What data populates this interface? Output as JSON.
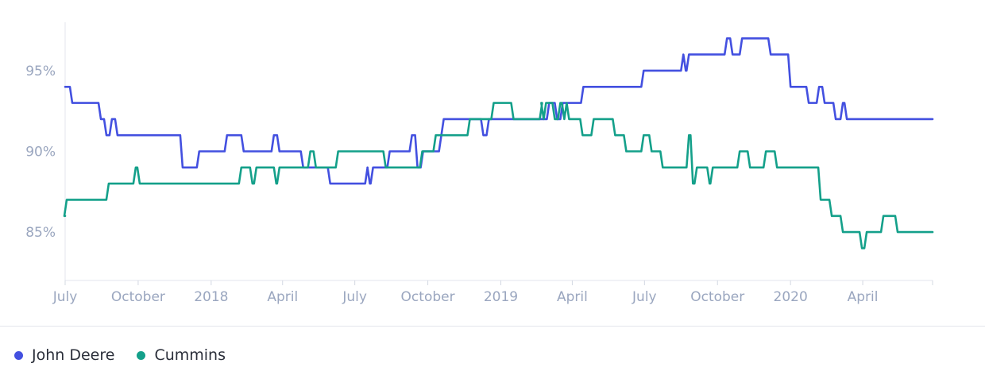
{
  "chart_data": {
    "type": "line",
    "xlabel": "",
    "ylabel": "",
    "x_range": [
      "2017-07-01",
      "2020-06-28"
    ],
    "y_range": [
      82,
      98
    ],
    "y_ticks": [
      {
        "value": 85,
        "label": "85%"
      },
      {
        "value": 90,
        "label": "90%"
      },
      {
        "value": 95,
        "label": "95%"
      }
    ],
    "x_ticks": [
      {
        "date": "2017-07-01",
        "label": "July"
      },
      {
        "date": "2017-10-01",
        "label": "October"
      },
      {
        "date": "2018-01-01",
        "label": "2018"
      },
      {
        "date": "2018-04-01",
        "label": "April"
      },
      {
        "date": "2018-07-01",
        "label": "July"
      },
      {
        "date": "2018-10-01",
        "label": "October"
      },
      {
        "date": "2019-01-01",
        "label": "2019"
      },
      {
        "date": "2019-04-01",
        "label": "April"
      },
      {
        "date": "2019-07-01",
        "label": "July"
      },
      {
        "date": "2019-10-01",
        "label": "October"
      },
      {
        "date": "2020-01-01",
        "label": "2020"
      },
      {
        "date": "2020-04-01",
        "label": "April"
      }
    ],
    "legend_position": "bottom-left",
    "series": [
      {
        "name": "John Deere",
        "color": "#4350e0",
        "step": true,
        "points": [
          [
            "2017-07-01",
            94
          ],
          [
            "2017-07-10",
            93
          ],
          [
            "2017-08-15",
            92
          ],
          [
            "2017-08-22",
            91
          ],
          [
            "2017-08-29",
            92
          ],
          [
            "2017-09-05",
            91
          ],
          [
            "2017-11-26",
            89
          ],
          [
            "2017-12-17",
            90
          ],
          [
            "2018-01-21",
            91
          ],
          [
            "2018-02-11",
            90
          ],
          [
            "2018-03-21",
            91
          ],
          [
            "2018-03-28",
            90
          ],
          [
            "2018-04-27",
            89
          ],
          [
            "2018-05-31",
            88
          ],
          [
            "2018-07-17",
            89
          ],
          [
            "2018-07-20",
            88
          ],
          [
            "2018-07-24",
            89
          ],
          [
            "2018-08-14",
            90
          ],
          [
            "2018-09-11",
            91
          ],
          [
            "2018-09-18",
            89
          ],
          [
            "2018-09-25",
            90
          ],
          [
            "2018-10-18",
            91
          ],
          [
            "2018-10-21",
            92
          ],
          [
            "2018-11-23",
            92
          ],
          [
            "2018-12-10",
            91
          ],
          [
            "2018-12-17",
            92
          ],
          [
            "2019-02-20",
            92
          ],
          [
            "2019-03-03",
            93
          ],
          [
            "2019-03-13",
            92
          ],
          [
            "2019-03-20",
            93
          ],
          [
            "2019-04-15",
            94
          ],
          [
            "2019-06-30",
            95
          ],
          [
            "2019-08-19",
            96
          ],
          [
            "2019-08-22",
            95
          ],
          [
            "2019-08-26",
            96
          ],
          [
            "2019-10-13",
            97
          ],
          [
            "2019-10-20",
            96
          ],
          [
            "2019-11-01",
            97
          ],
          [
            "2019-12-07",
            96
          ],
          [
            "2020-01-01",
            94
          ],
          [
            "2020-01-24",
            93
          ],
          [
            "2020-02-06",
            94
          ],
          [
            "2020-02-13",
            93
          ],
          [
            "2020-02-27",
            92
          ],
          [
            "2020-03-07",
            93
          ],
          [
            "2020-03-12",
            92
          ],
          [
            "2020-06-28",
            92
          ]
        ]
      },
      {
        "name": "Cummins",
        "color": "#14a08a",
        "step": true,
        "points": [
          [
            "2017-07-01",
            86
          ],
          [
            "2017-07-03",
            87
          ],
          [
            "2017-08-25",
            88
          ],
          [
            "2017-09-28",
            89
          ],
          [
            "2017-10-03",
            88
          ],
          [
            "2018-02-08",
            89
          ],
          [
            "2018-02-22",
            88
          ],
          [
            "2018-02-27",
            89
          ],
          [
            "2018-03-24",
            88
          ],
          [
            "2018-03-28",
            89
          ],
          [
            "2018-05-06",
            90
          ],
          [
            "2018-05-13",
            89
          ],
          [
            "2018-06-10",
            90
          ],
          [
            "2018-08-09",
            89
          ],
          [
            "2018-09-24",
            90
          ],
          [
            "2018-10-11",
            91
          ],
          [
            "2018-11-23",
            92
          ],
          [
            "2018-12-23",
            93
          ],
          [
            "2019-01-17",
            92
          ],
          [
            "2019-02-22",
            93
          ],
          [
            "2019-02-24",
            92
          ],
          [
            "2019-02-27",
            93
          ],
          [
            "2019-03-10",
            92
          ],
          [
            "2019-03-17",
            93
          ],
          [
            "2019-03-22",
            92
          ],
          [
            "2019-03-25",
            93
          ],
          [
            "2019-03-28",
            92
          ],
          [
            "2019-04-14",
            91
          ],
          [
            "2019-04-28",
            92
          ],
          [
            "2019-05-25",
            91
          ],
          [
            "2019-06-08",
            90
          ],
          [
            "2019-06-30",
            91
          ],
          [
            "2019-07-10",
            90
          ],
          [
            "2019-07-24",
            89
          ],
          [
            "2019-08-26",
            91
          ],
          [
            "2019-08-31",
            88
          ],
          [
            "2019-09-05",
            89
          ],
          [
            "2019-09-21",
            88
          ],
          [
            "2019-09-25",
            89
          ],
          [
            "2019-10-29",
            90
          ],
          [
            "2019-11-11",
            89
          ],
          [
            "2019-12-01",
            90
          ],
          [
            "2019-12-15",
            89
          ],
          [
            "2020-02-08",
            87
          ],
          [
            "2020-02-22",
            86
          ],
          [
            "2020-03-07",
            85
          ],
          [
            "2020-03-31",
            84
          ],
          [
            "2020-04-06",
            85
          ],
          [
            "2020-04-27",
            86
          ],
          [
            "2020-05-15",
            85
          ],
          [
            "2020-06-28",
            85
          ]
        ]
      }
    ]
  }
}
